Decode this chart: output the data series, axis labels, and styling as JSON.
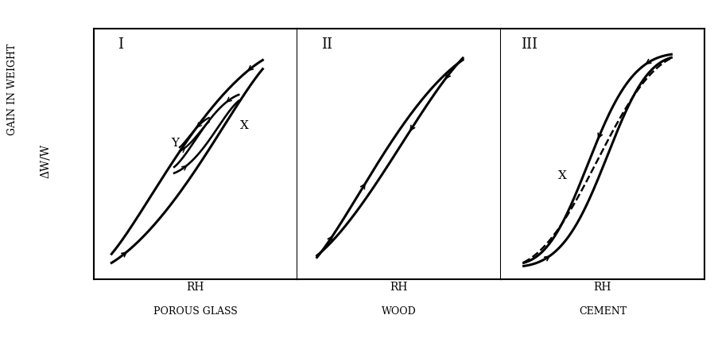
{
  "panels": [
    {
      "label": "I",
      "xlabel": "RH",
      "material": "POROUS GLASS",
      "has_inner_loops": true,
      "label_x": "X",
      "label_y": "Y"
    },
    {
      "label": "II",
      "xlabel": "RH",
      "material": "WOOD",
      "has_inner_loops": false
    },
    {
      "label": "III",
      "xlabel": "RH",
      "material": "CEMENT",
      "has_dashed": true,
      "label_x": "X"
    }
  ],
  "ylabel1": "GAIN IN WEIGHT",
  "ylabel2": "ΔW/W",
  "bg_color": "#ffffff",
  "line_color": "#000000",
  "lw": 2.2
}
